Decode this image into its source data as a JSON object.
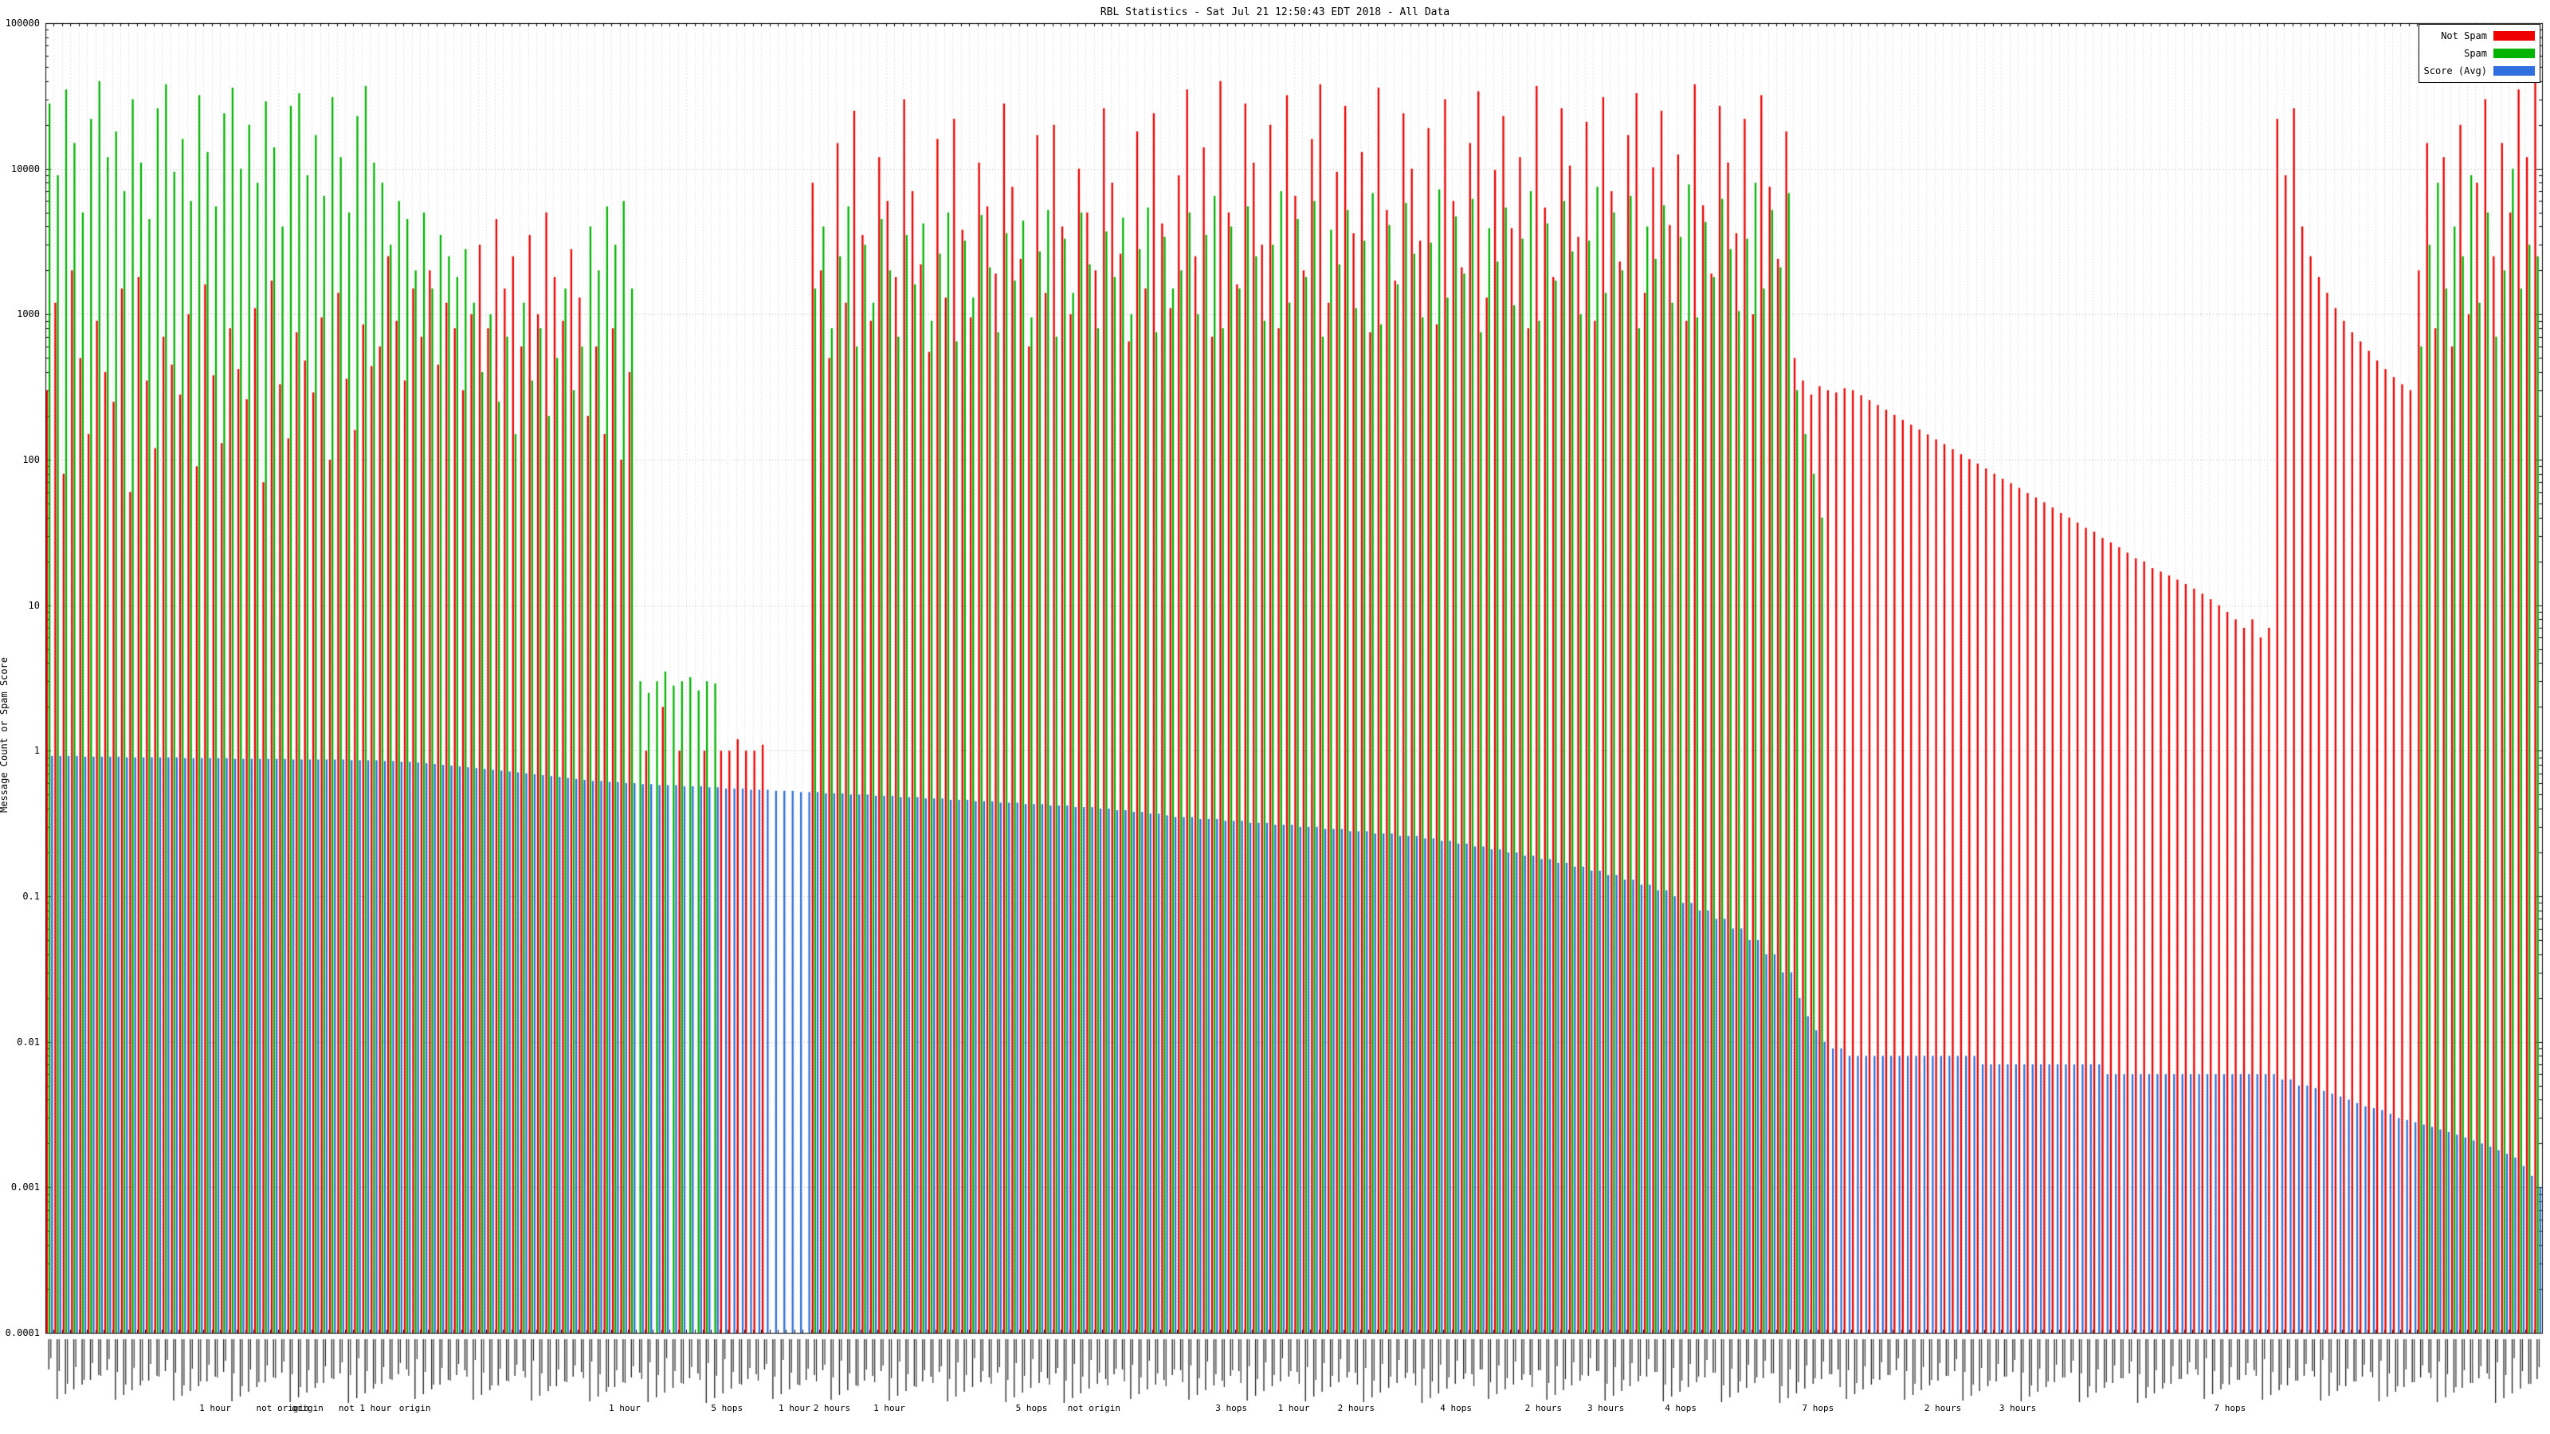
{
  "title": "RBL Statistics - Sat Jul 21 12:50:43 EDT 2018 - All Data",
  "background": "#ffffff",
  "y_axis": {
    "label": "Message Count or Spam Score",
    "scale": "log",
    "min": 0.0001,
    "max": 100000,
    "ticks": [
      "100000",
      "10000",
      "1000",
      "100",
      "10",
      "1",
      "0.1",
      "0.01",
      "0.001",
      "0.0001"
    ]
  },
  "x_axis": {
    "tick_label_note": "~300 rotated RBL rule-name tick labels, illegible at this scale",
    "group_labels": [
      {
        "pos": 0.068,
        "text": "1 hour"
      },
      {
        "pos": 0.095,
        "text": "not origin"
      },
      {
        "pos": 0.105,
        "text": "origin"
      },
      {
        "pos": 0.128,
        "text": "not 1 hour"
      },
      {
        "pos": 0.148,
        "text": "origin"
      },
      {
        "pos": 0.232,
        "text": "1 hour"
      },
      {
        "pos": 0.273,
        "text": "5 hops"
      },
      {
        "pos": 0.3,
        "text": "1 hour"
      },
      {
        "pos": 0.315,
        "text": "2 hours"
      },
      {
        "pos": 0.338,
        "text": "1 hour"
      },
      {
        "pos": 0.395,
        "text": "5 hops"
      },
      {
        "pos": 0.42,
        "text": "not origin"
      },
      {
        "pos": 0.475,
        "text": "3 hops"
      },
      {
        "pos": 0.5,
        "text": "1 hour"
      },
      {
        "pos": 0.525,
        "text": "2 hours"
      },
      {
        "pos": 0.565,
        "text": "4 hops"
      },
      {
        "pos": 0.6,
        "text": "2 hours"
      },
      {
        "pos": 0.625,
        "text": "3 hours"
      },
      {
        "pos": 0.655,
        "text": "4 hops"
      },
      {
        "pos": 0.71,
        "text": "7 hops"
      },
      {
        "pos": 0.76,
        "text": "2 hours"
      },
      {
        "pos": 0.79,
        "text": "3 hours"
      },
      {
        "pos": 0.875,
        "text": "7 hops"
      }
    ]
  },
  "legend": [
    {
      "label": "Not Spam",
      "color": "#ee0000"
    },
    {
      "label": "Spam",
      "color": "#00b400"
    },
    {
      "label": "Score (Avg)",
      "color": "#2f6fdf"
    }
  ],
  "chart_data": {
    "type": "bar",
    "log_y": true,
    "ylim": [
      0.0001,
      100000
    ],
    "grid": true,
    "legend_position": "top-right",
    "series_names": [
      "Not Spam",
      "Spam",
      "Score (Avg)"
    ],
    "colors": [
      "#ee0000",
      "#00b400",
      "#2f6fdf"
    ],
    "bars_format": "[not_spam_count, spam_count, score]",
    "bars": [
      [
        300,
        28000,
        0.92
      ],
      [
        1200,
        9000,
        0.92
      ],
      [
        80,
        35000,
        0.92
      ],
      [
        2000,
        15000,
        0.92
      ],
      [
        500,
        5000,
        0.91
      ],
      [
        150,
        22000,
        0.91
      ],
      [
        900,
        40000,
        0.91
      ],
      [
        400,
        12000,
        0.91
      ],
      [
        250,
        18000,
        0.91
      ],
      [
        1500,
        7000,
        0.9
      ],
      [
        60,
        30000,
        0.9
      ],
      [
        1800,
        11000,
        0.9
      ],
      [
        350,
        4500,
        0.9
      ],
      [
        120,
        26000,
        0.9
      ],
      [
        700,
        38000,
        0.9
      ],
      [
        450,
        9500,
        0.9
      ],
      [
        280,
        16000,
        0.89
      ],
      [
        1000,
        6000,
        0.89
      ],
      [
        90,
        32000,
        0.89
      ],
      [
        1600,
        13000,
        0.89
      ],
      [
        380,
        5500,
        0.89
      ],
      [
        130,
        24000,
        0.89
      ],
      [
        800,
        36000,
        0.88
      ],
      [
        420,
        10000,
        0.88
      ],
      [
        260,
        20000,
        0.88
      ],
      [
        1100,
        8000,
        0.88
      ],
      [
        70,
        29000,
        0.88
      ],
      [
        1700,
        14000,
        0.88
      ],
      [
        330,
        4000,
        0.88
      ],
      [
        140,
        27000,
        0.87
      ],
      [
        750,
        33000,
        0.87
      ],
      [
        480,
        9000,
        0.87
      ],
      [
        290,
        17000,
        0.87
      ],
      [
        950,
        6500,
        0.87
      ],
      [
        100,
        31000,
        0.87
      ],
      [
        1400,
        12000,
        0.87
      ],
      [
        360,
        5000,
        0.86
      ],
      [
        160,
        23000,
        0.86
      ],
      [
        850,
        37000,
        0.86
      ],
      [
        440,
        11000,
        0.86
      ],
      [
        600,
        8000,
        0.85
      ],
      [
        2500,
        3000,
        0.85
      ],
      [
        900,
        6000,
        0.84
      ],
      [
        350,
        4500,
        0.84
      ],
      [
        1500,
        2000,
        0.83
      ],
      [
        700,
        5000,
        0.82
      ],
      [
        2000,
        1500,
        0.81
      ],
      [
        450,
        3500,
        0.8
      ],
      [
        1200,
        2500,
        0.79
      ],
      [
        800,
        1800,
        0.78
      ],
      [
        300,
        2800,
        0.77
      ],
      [
        1000,
        1200,
        0.76
      ],
      [
        3000,
        400,
        0.75
      ],
      [
        800,
        1000,
        0.74
      ],
      [
        4500,
        250,
        0.73
      ],
      [
        1500,
        700,
        0.72
      ],
      [
        2500,
        150,
        0.71
      ],
      [
        600,
        1200,
        0.7
      ],
      [
        3500,
        350,
        0.69
      ],
      [
        1000,
        800,
        0.68
      ],
      [
        5000,
        200,
        0.67
      ],
      [
        1800,
        500,
        0.66
      ],
      [
        900,
        1500,
        0.65
      ],
      [
        2800,
        300,
        0.64
      ],
      [
        1300,
        600,
        0.63
      ],
      [
        200,
        4000,
        0.62
      ],
      [
        600,
        2000,
        0.62
      ],
      [
        150,
        5500,
        0.61
      ],
      [
        800,
        3000,
        0.61
      ],
      [
        100,
        6000,
        0.6
      ],
      [
        400,
        1500,
        0.6
      ],
      [
        0,
        3,
        0.59
      ],
      [
        1,
        2.5,
        0.59
      ],
      [
        0,
        3,
        0.58
      ],
      [
        2,
        3.5,
        0.58
      ],
      [
        0,
        2.8,
        0.58
      ],
      [
        1,
        3,
        0.57
      ],
      [
        0,
        3.2,
        0.57
      ],
      [
        0,
        2.6,
        0.57
      ],
      [
        1,
        3,
        0.56
      ],
      [
        0,
        2.9,
        0.56
      ],
      [
        1,
        0,
        0.55
      ],
      [
        1,
        0,
        0.55
      ],
      [
        1.2,
        0,
        0.55
      ],
      [
        1,
        0,
        0.54
      ],
      [
        1,
        0,
        0.54
      ],
      [
        1.1,
        0,
        0.54
      ],
      [
        0,
        0,
        0.53
      ],
      [
        0,
        0,
        0.53
      ],
      [
        0,
        0,
        0.53
      ],
      [
        0,
        0,
        0.52
      ],
      [
        0,
        0,
        0.52
      ],
      [
        8000,
        1500,
        0.52
      ],
      [
        2000,
        4000,
        0.51
      ],
      [
        500,
        800,
        0.51
      ],
      [
        15000,
        2500,
        0.51
      ],
      [
        1200,
        5500,
        0.5
      ],
      [
        25000,
        600,
        0.5
      ],
      [
        3500,
        3000,
        0.5
      ],
      [
        900,
        1200,
        0.49
      ],
      [
        12000,
        4500,
        0.49
      ],
      [
        6000,
        2000,
        0.49
      ],
      [
        1800,
        700,
        0.48
      ],
      [
        30000,
        3500,
        0.48
      ],
      [
        7000,
        1600,
        0.48
      ],
      [
        2200,
        4200,
        0.47
      ],
      [
        550,
        900,
        0.47
      ],
      [
        16000,
        2600,
        0.47
      ],
      [
        1300,
        5000,
        0.46
      ],
      [
        22000,
        650,
        0.46
      ],
      [
        3800,
        3200,
        0.46
      ],
      [
        950,
        1300,
        0.45
      ],
      [
        11000,
        4800,
        0.45
      ],
      [
        5500,
        2100,
        0.45
      ],
      [
        1900,
        750,
        0.44
      ],
      [
        28000,
        3600,
        0.44
      ],
      [
        7500,
        1700,
        0.44
      ],
      [
        2400,
        4400,
        0.43
      ],
      [
        600,
        950,
        0.43
      ],
      [
        17000,
        2700,
        0.43
      ],
      [
        1400,
        5200,
        0.42
      ],
      [
        20000,
        700,
        0.42
      ],
      [
        4000,
        3300,
        0.42
      ],
      [
        1000,
        1400,
        0.41
      ],
      [
        10000,
        5000,
        0.41
      ],
      [
        5000,
        2200,
        0.41
      ],
      [
        2000,
        800,
        0.4
      ],
      [
        26000,
        3700,
        0.4
      ],
      [
        8000,
        1800,
        0.39
      ],
      [
        2600,
        4600,
        0.39
      ],
      [
        650,
        1000,
        0.38
      ],
      [
        18000,
        2800,
        0.38
      ],
      [
        1500,
        5400,
        0.37
      ],
      [
        24000,
        750,
        0.37
      ],
      [
        4200,
        3400,
        0.36
      ],
      [
        1100,
        1500,
        0.35
      ],
      [
        9000,
        2000,
        0.35
      ],
      [
        35000,
        5000,
        0.35
      ],
      [
        2500,
        1000,
        0.34
      ],
      [
        14000,
        3500,
        0.34
      ],
      [
        700,
        6500,
        0.34
      ],
      [
        40000,
        800,
        0.33
      ],
      [
        5000,
        4000,
        0.33
      ],
      [
        1600,
        1500,
        0.33
      ],
      [
        28000,
        5500,
        0.32
      ],
      [
        11000,
        2500,
        0.32
      ],
      [
        3000,
        900,
        0.32
      ],
      [
        20000,
        3000,
        0.31
      ],
      [
        800,
        7000,
        0.31
      ],
      [
        32000,
        1200,
        0.31
      ],
      [
        6500,
        4500,
        0.3
      ],
      [
        2000,
        1800,
        0.3
      ],
      [
        16000,
        6000,
        0.3
      ],
      [
        38000,
        700,
        0.29
      ],
      [
        1200,
        3800,
        0.29
      ],
      [
        9500,
        2200,
        0.29
      ],
      [
        27000,
        5200,
        0.28
      ],
      [
        3600,
        1100,
        0.28
      ],
      [
        13000,
        3200,
        0.28
      ],
      [
        750,
        6800,
        0.27
      ],
      [
        36000,
        850,
        0.27
      ],
      [
        5200,
        4100,
        0.27
      ],
      [
        1700,
        1600,
        0.26
      ],
      [
        24000,
        5800,
        0.26
      ],
      [
        10000,
        2600,
        0.26
      ],
      [
        3200,
        950,
        0.25
      ],
      [
        19000,
        3100,
        0.25
      ],
      [
        850,
        7200,
        0.24
      ],
      [
        30000,
        1300,
        0.24
      ],
      [
        6000,
        4700,
        0.23
      ],
      [
        2100,
        1900,
        0.23
      ],
      [
        15000,
        6200,
        0.22
      ],
      [
        34000,
        750,
        0.22
      ],
      [
        1300,
        3900,
        0.21
      ],
      [
        9800,
        2300,
        0.21
      ],
      [
        23000,
        5400,
        0.2
      ],
      [
        3900,
        1150,
        0.2
      ],
      [
        12000,
        3300,
        0.19
      ],
      [
        800,
        7000,
        0.19
      ],
      [
        37000,
        900,
        0.18
      ],
      [
        5400,
        4200,
        0.18
      ],
      [
        1800,
        1700,
        0.17
      ],
      [
        26000,
        6000,
        0.17
      ],
      [
        10500,
        2700,
        0.16
      ],
      [
        3400,
        1000,
        0.16
      ],
      [
        21000,
        3200,
        0.15
      ],
      [
        900,
        7500,
        0.15
      ],
      [
        31000,
        1400,
        0.14
      ],
      [
        7000,
        5000,
        0.14
      ],
      [
        2300,
        2000,
        0.13
      ],
      [
        17000,
        6500,
        0.13
      ],
      [
        33000,
        800,
        0.12
      ],
      [
        1400,
        4000,
        0.12
      ],
      [
        10200,
        2400,
        0.11
      ],
      [
        25000,
        5600,
        0.11
      ],
      [
        4100,
        1200,
        0.1
      ],
      [
        12500,
        3400,
        0.09
      ],
      [
        900,
        7800,
        0.09
      ],
      [
        38000,
        950,
        0.08
      ],
      [
        5600,
        4300,
        0.08
      ],
      [
        1900,
        1800,
        0.07
      ],
      [
        27000,
        6200,
        0.07
      ],
      [
        11000,
        2800,
        0.06
      ],
      [
        3600,
        1050,
        0.06
      ],
      [
        22000,
        3300,
        0.05
      ],
      [
        1000,
        8000,
        0.05
      ],
      [
        32000,
        1500,
        0.04
      ],
      [
        7500,
        5200,
        0.04
      ],
      [
        2400,
        2100,
        0.03
      ],
      [
        18000,
        6800,
        0.03
      ],
      [
        500,
        300,
        0.02
      ],
      [
        350,
        150,
        0.015
      ],
      [
        280,
        80,
        0.012
      ],
      [
        320,
        40,
        0.01
      ],
      [
        300,
        0,
        0.009
      ],
      [
        290,
        0,
        0.009
      ],
      [
        310,
        0,
        0.008
      ],
      [
        300,
        0,
        0.008
      ],
      [
        277,
        0,
        0.008
      ],
      [
        257,
        0,
        0.008
      ],
      [
        238,
        0,
        0.008
      ],
      [
        220,
        0,
        0.008
      ],
      [
        203,
        0,
        0.008
      ],
      [
        188,
        0,
        0.008
      ],
      [
        174,
        0,
        0.008
      ],
      [
        161,
        0,
        0.008
      ],
      [
        149,
        0,
        0.008
      ],
      [
        138,
        0,
        0.008
      ],
      [
        128,
        0,
        0.008
      ],
      [
        118,
        0,
        0.008
      ],
      [
        109,
        0,
        0.008
      ],
      [
        101,
        0,
        0.008
      ],
      [
        94,
        0,
        0.007
      ],
      [
        87,
        0,
        0.007
      ],
      [
        80,
        0,
        0.007
      ],
      [
        74,
        0,
        0.007
      ],
      [
        69,
        0,
        0.007
      ],
      [
        64,
        0,
        0.007
      ],
      [
        59,
        0,
        0.007
      ],
      [
        55,
        0,
        0.007
      ],
      [
        51,
        0,
        0.007
      ],
      [
        47,
        0,
        0.007
      ],
      [
        43,
        0,
        0.007
      ],
      [
        40,
        0,
        0.007
      ],
      [
        37,
        0,
        0.007
      ],
      [
        34,
        0,
        0.007
      ],
      [
        32,
        0,
        0.007
      ],
      [
        29,
        0,
        0.006
      ],
      [
        27,
        0,
        0.006
      ],
      [
        25,
        0,
        0.006
      ],
      [
        23,
        0,
        0.006
      ],
      [
        21,
        0,
        0.006
      ],
      [
        20,
        0,
        0.006
      ],
      [
        18,
        0,
        0.006
      ],
      [
        17,
        0,
        0.006
      ],
      [
        16,
        0,
        0.006
      ],
      [
        15,
        0,
        0.006
      ],
      [
        14,
        0,
        0.006
      ],
      [
        13,
        0,
        0.006
      ],
      [
        12,
        0,
        0.006
      ],
      [
        11,
        0,
        0.006
      ],
      [
        10,
        0,
        0.006
      ],
      [
        9,
        0,
        0.006
      ],
      [
        8,
        0,
        0.006
      ],
      [
        7,
        0,
        0.006
      ],
      [
        8,
        0,
        0.006
      ],
      [
        6,
        0,
        0.006
      ],
      [
        7,
        0,
        0.006
      ],
      [
        22000,
        0,
        0.0055
      ],
      [
        9000,
        0,
        0.0055
      ],
      [
        26000,
        0,
        0.005
      ],
      [
        4000,
        0,
        0.005
      ],
      [
        2500,
        0,
        0.0048
      ],
      [
        1800,
        0,
        0.0046
      ],
      [
        1400,
        0,
        0.0044
      ],
      [
        1100,
        0,
        0.0042
      ],
      [
        900,
        0,
        0.004
      ],
      [
        750,
        0,
        0.0038
      ],
      [
        650,
        0,
        0.0036
      ],
      [
        560,
        0,
        0.0035
      ],
      [
        480,
        0,
        0.0034
      ],
      [
        420,
        0,
        0.0032
      ],
      [
        370,
        0,
        0.003
      ],
      [
        330,
        0,
        0.0029
      ],
      [
        300,
        0,
        0.0028
      ],
      [
        2000,
        600,
        0.0027
      ],
      [
        15000,
        3000,
        0.0026
      ],
      [
        800,
        8000,
        0.0025
      ],
      [
        12000,
        1500,
        0.0024
      ],
      [
        600,
        4000,
        0.0023
      ],
      [
        20000,
        2500,
        0.0022
      ],
      [
        1000,
        9000,
        0.0021
      ],
      [
        8000,
        1200,
        0.002
      ],
      [
        30000,
        5000,
        0.0019
      ],
      [
        2500,
        700,
        0.0018
      ],
      [
        15000,
        2000,
        0.0017
      ],
      [
        5000,
        10000,
        0.0016
      ],
      [
        35000,
        1500,
        0.0014
      ],
      [
        12000,
        3000,
        0.0012
      ],
      [
        50000,
        2500,
        0.001
      ]
    ]
  }
}
